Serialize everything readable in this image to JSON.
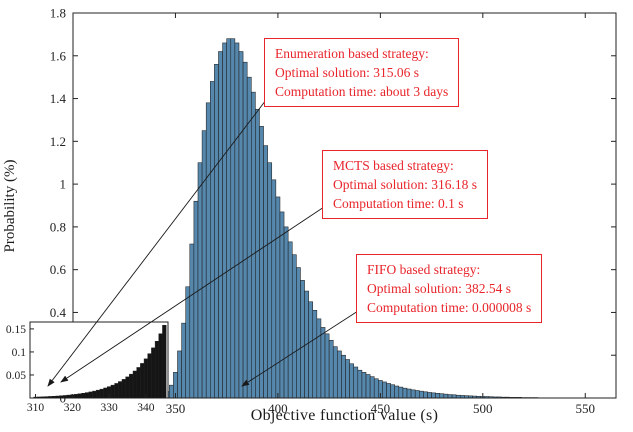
{
  "colors": {
    "bar_fill": "#5688ae",
    "bar_edge": "#1f1f1f",
    "inset_bar_fill": "#151515",
    "annotation": "#e8252b",
    "axis": "#222222"
  },
  "annotations": [
    {
      "title": "Enumeration based strategy:",
      "optimal": "Optimal solution: 315.06 s",
      "time": "Computation time: about 3 days"
    },
    {
      "title": "MCTS based strategy:",
      "optimal": "Optimal solution: 316.18 s",
      "time": "Computation time: 0.1 s"
    },
    {
      "title": "FIFO based strategy:",
      "optimal": "Optimal solution: 382.54 s",
      "time": "Computation time: 0.000008 s"
    }
  ],
  "chart_data": [
    {
      "type": "bar",
      "role": "main-histogram",
      "title": "",
      "xlabel": "Objective function value (s)",
      "ylabel": "Probability (%)",
      "xlim": [
        300,
        565
      ],
      "ylim": [
        0,
        1.8
      ],
      "x_ticks": [
        350,
        400,
        450,
        500,
        550
      ],
      "y_ticks": [
        0,
        0.2,
        0.4,
        0.6,
        0.8,
        1,
        1.2,
        1.4,
        1.6,
        1.8
      ],
      "grid": false,
      "legend": "none",
      "bin_width": 2,
      "x": [
        344,
        346,
        348,
        350,
        352,
        354,
        356,
        358,
        360,
        362,
        364,
        366,
        368,
        370,
        372,
        374,
        376,
        378,
        380,
        382,
        384,
        386,
        388,
        390,
        392,
        394,
        396,
        398,
        400,
        402,
        404,
        406,
        408,
        410,
        412,
        414,
        416,
        418,
        420,
        422,
        424,
        426,
        428,
        430,
        432,
        434,
        436,
        438,
        440,
        442,
        444,
        446,
        448,
        450,
        452,
        454,
        456,
        458,
        460,
        462,
        464,
        466,
        468,
        470,
        472,
        474,
        476,
        478,
        480,
        482,
        484,
        486,
        488,
        490,
        492,
        494,
        496,
        498,
        500,
        502,
        504,
        506,
        508,
        510,
        512,
        514,
        516,
        518,
        520,
        522,
        524,
        526,
        528,
        530,
        532,
        534,
        536,
        538,
        540
      ],
      "values": [
        0.01,
        0.03,
        0.06,
        0.12,
        0.22,
        0.35,
        0.52,
        0.72,
        0.92,
        1.1,
        1.25,
        1.38,
        1.48,
        1.56,
        1.62,
        1.66,
        1.68,
        1.68,
        1.66,
        1.62,
        1.57,
        1.5,
        1.43,
        1.35,
        1.27,
        1.18,
        1.1,
        1.02,
        0.94,
        0.87,
        0.8,
        0.73,
        0.67,
        0.61,
        0.55,
        0.5,
        0.45,
        0.41,
        0.37,
        0.33,
        0.3,
        0.27,
        0.24,
        0.22,
        0.2,
        0.18,
        0.16,
        0.145,
        0.13,
        0.12,
        0.11,
        0.1,
        0.09,
        0.082,
        0.075,
        0.068,
        0.062,
        0.056,
        0.051,
        0.046,
        0.042,
        0.038,
        0.035,
        0.032,
        0.029,
        0.026,
        0.024,
        0.022,
        0.02,
        0.018,
        0.016,
        0.015,
        0.013,
        0.012,
        0.011,
        0.01,
        0.009,
        0.008,
        0.007,
        0.007,
        0.006,
        0.005,
        0.005,
        0.004,
        0.004,
        0.003,
        0.003,
        0.003,
        0.002,
        0.002,
        0.002,
        0.002,
        0.001,
        0.001,
        0.001,
        0.001,
        0.001,
        0.001,
        0.001
      ]
    },
    {
      "type": "bar",
      "role": "inset-histogram-zoom",
      "title": "",
      "xlabel": "",
      "ylabel": "",
      "xlim": [
        308.5,
        346
      ],
      "ylim": [
        0,
        0.165
      ],
      "x_ticks": [
        310,
        320,
        330,
        340
      ],
      "y_ticks": [
        0.05,
        0.1,
        0.15
      ],
      "grid": false,
      "legend": "none",
      "bin_width": 1,
      "x": [
        310,
        311,
        312,
        313,
        314,
        315,
        316,
        317,
        318,
        319,
        320,
        321,
        322,
        323,
        324,
        325,
        326,
        327,
        328,
        329,
        330,
        331,
        332,
        333,
        334,
        335,
        336,
        337,
        338,
        339,
        340,
        341,
        342,
        343,
        344,
        345
      ],
      "values": [
        0.002,
        0.0023,
        0.0026,
        0.003,
        0.0034,
        0.0038,
        0.0043,
        0.0049,
        0.0055,
        0.0063,
        0.0071,
        0.008,
        0.0091,
        0.0103,
        0.0117,
        0.0132,
        0.015,
        0.017,
        0.0192,
        0.0218,
        0.0246,
        0.0279,
        0.0316,
        0.0357,
        0.0404,
        0.0458,
        0.0518,
        0.0586,
        0.0663,
        0.0751,
        0.085,
        0.0962,
        0.1089,
        0.1232,
        0.1395,
        0.158
      ]
    }
  ]
}
